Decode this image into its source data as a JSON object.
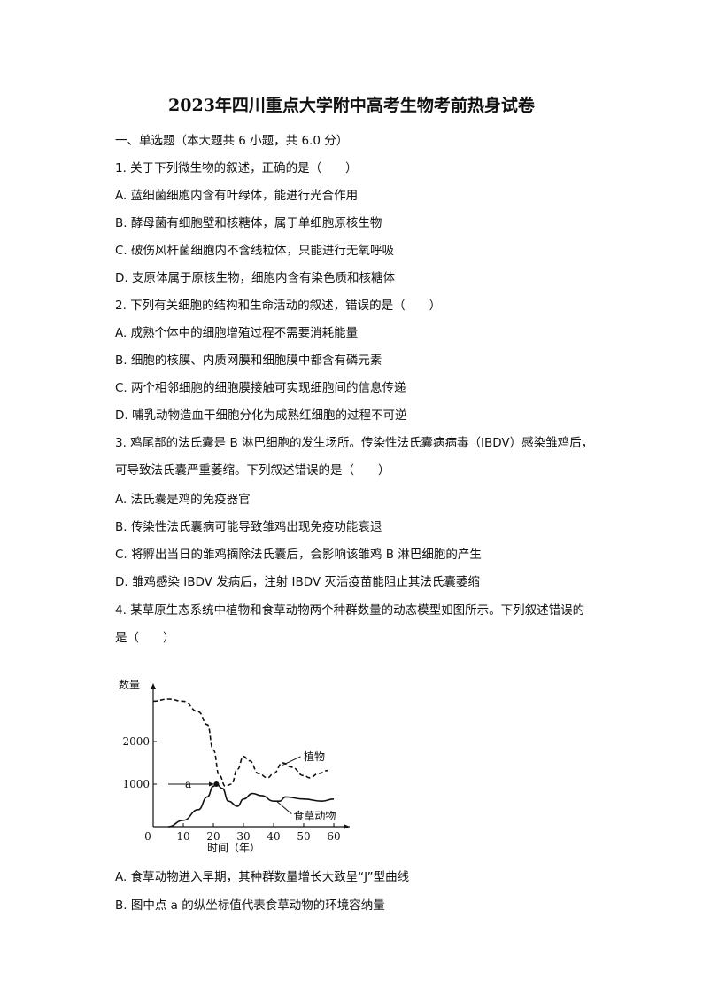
{
  "title": "2023年四川重点大学附中高考生物考前热身试卷",
  "lines": [
    "一、单选题（本大题共 6 小题，共 6.0 分）",
    "1.   关于下列微生物的叙述，正确的是（　　）",
    "A. 蓝细菌细胞内含有叶绿体，能进行光合作用",
    "B. 酵母菌有细胞壁和核糖体，属于单细胞原核生物",
    "C. 破伤风杆菌细胞内不含线粒体，只能进行无氧呼吸",
    "D. 支原体属于原核生物，细胞内含有染色质和核糖体",
    "2.   下列有关细胞的结构和生命活动的叙述，错误的是（　　）",
    "A. 成熟个体中的细胞增殖过程不需要消耗能量",
    "B. 细胞的核膜、内质网膜和细胞膜中都含有磷元素",
    "C. 两个相邻细胞的细胞膜接触可实现细胞间的信息传递",
    "D. 哺乳动物造血干细胞分化为成熟红细胞的过程不可逆",
    "3.   鸡尾部的法氏囊是 B 淋巴细胞的发生场所。传染性法氏囊病病毒（IBDV）感染雏鸡后，",
    "可导致法氏囊严重萎缩。下列叙述错误的是（　　）",
    "A. 法氏囊是鸡的免疫器官",
    "B. 传染性法氏囊病可能导致雏鸡出现免疫功能衰退",
    "C. 将孵出当日的雏鸡摘除法氏囊后，会影响该雏鸡 B 淋巴细胞的产生",
    "D. 雏鸡感染 IBDV 发病后，注射 IBDV 灭活疫苗能阻止其法氏囊萎缩",
    "4.   某草原生态系统中植物和食草动物两个种群数量的动态模型如图所示。下列叙述错误的",
    "是（　　）"
  ],
  "after_lines": [
    "A. 食草动物进入早期，其种群数量增长大致呈“J”型曲线",
    "B. 图中点 a 的纵坐标值代表食草动物的环境容纳量"
  ],
  "chart_data": {
    "type": "line",
    "ylabel": "数量",
    "xlabel": "时间（年）",
    "x_ticks": [
      "0",
      "10",
      "20",
      "30",
      "40",
      "50",
      "60"
    ],
    "y_ticks": [
      "1000",
      "2000"
    ],
    "xlim": [
      0,
      65
    ],
    "ylim": [
      0,
      3300
    ],
    "annotation": "a",
    "series": [
      {
        "name": "植物",
        "style": "dashed",
        "points": [
          [
            0,
            2950
          ],
          [
            5,
            3000
          ],
          [
            10,
            2950
          ],
          [
            15,
            2700
          ],
          [
            18,
            2400
          ],
          [
            20,
            1800
          ],
          [
            22,
            1200
          ],
          [
            24,
            950
          ],
          [
            26,
            1000
          ],
          [
            28,
            1350
          ],
          [
            30,
            1650
          ],
          [
            32,
            1550
          ],
          [
            35,
            1250
          ],
          [
            38,
            1150
          ],
          [
            40,
            1250
          ],
          [
            43,
            1500
          ],
          [
            46,
            1400
          ],
          [
            50,
            1200
          ],
          [
            52,
            1150
          ],
          [
            55,
            1250
          ],
          [
            58,
            1320
          ]
        ]
      },
      {
        "name": "食草动物",
        "style": "solid",
        "points": [
          [
            5,
            0
          ],
          [
            10,
            150
          ],
          [
            15,
            400
          ],
          [
            18,
            700
          ],
          [
            20,
            950
          ],
          [
            21,
            1000
          ],
          [
            23,
            900
          ],
          [
            25,
            600
          ],
          [
            28,
            480
          ],
          [
            30,
            650
          ],
          [
            33,
            780
          ],
          [
            36,
            730
          ],
          [
            40,
            600
          ],
          [
            42,
            600
          ],
          [
            44,
            700
          ],
          [
            50,
            650
          ],
          [
            56,
            600
          ],
          [
            60,
            650
          ]
        ]
      }
    ]
  }
}
